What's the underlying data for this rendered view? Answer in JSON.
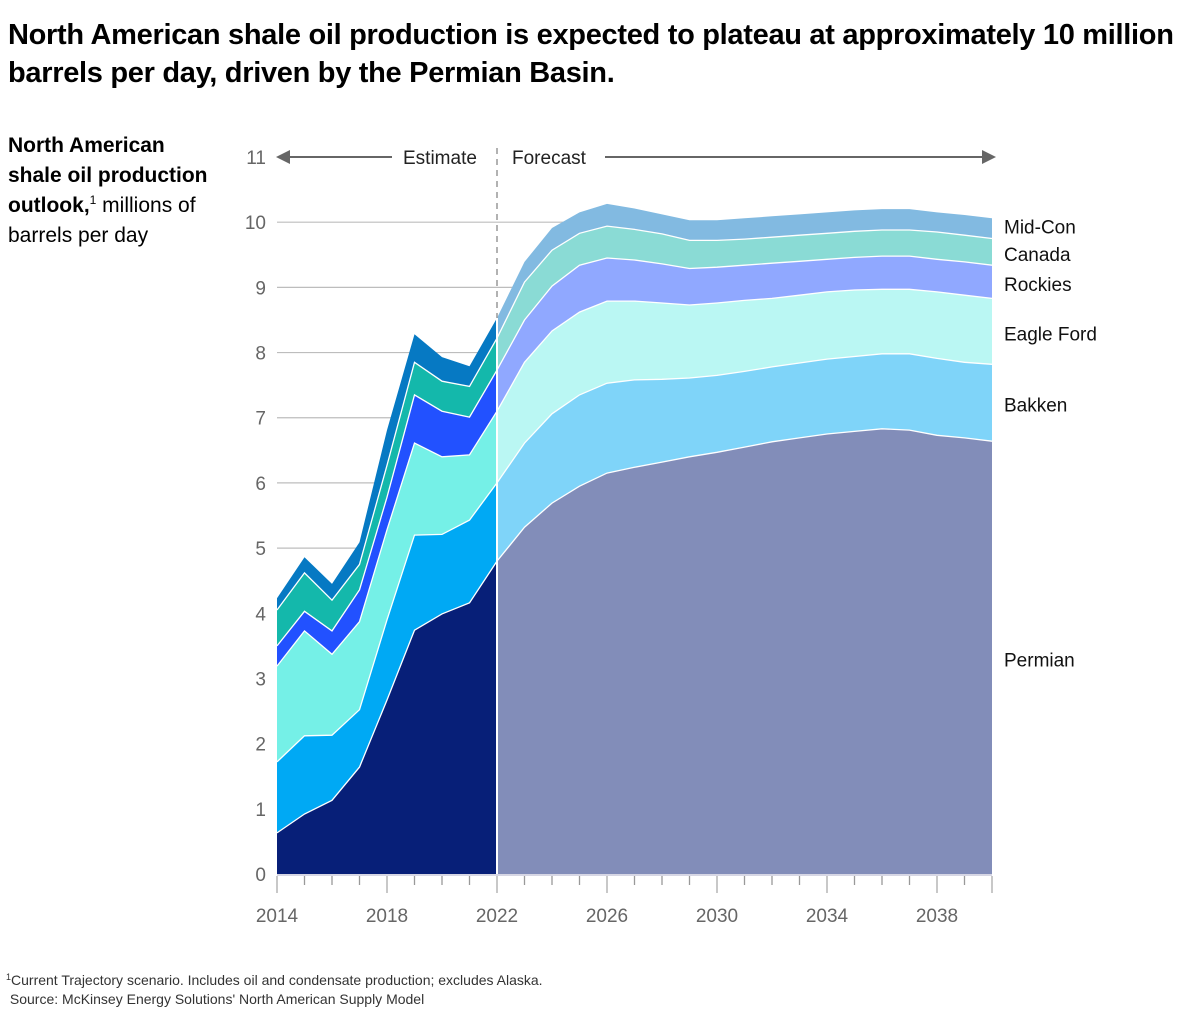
{
  "headline": "North American shale oil production is expected to plateau at approximately 10 million barrels per day, driven by the Permian Basin.",
  "ylabel": {
    "bold": "North American shale oil production outlook,",
    "footnote_marker": "1",
    "rest": " millions of barrels per day"
  },
  "footnote": {
    "marker": "1",
    "text": "Current Trajectory scenario. Includes oil and condensate production; excludes Alaska.",
    "source": "Source: McKinsey Energy Solutions' North American Supply Model"
  },
  "periods": {
    "estimate_label": "Estimate",
    "forecast_label": "Forecast",
    "split_year": 2022
  },
  "chart_data": {
    "type": "area",
    "stacked": true,
    "title": "North American shale oil production outlook",
    "xlabel": "",
    "ylabel": "millions of barrels per day",
    "xlim": [
      2014,
      2040
    ],
    "ylim": [
      0,
      11
    ],
    "yticks": [
      0,
      1,
      2,
      3,
      4,
      5,
      6,
      7,
      8,
      9,
      10,
      11
    ],
    "xtick_labels": [
      2014,
      2018,
      2022,
      2026,
      2030,
      2034,
      2038
    ],
    "grid": "horizontal",
    "legend": "right (inline labels)",
    "x": [
      2014,
      2015,
      2016,
      2017,
      2018,
      2019,
      2020,
      2021,
      2022,
      2023,
      2024,
      2025,
      2026,
      2027,
      2028,
      2029,
      2030,
      2031,
      2032,
      2033,
      2034,
      2035,
      2036,
      2037,
      2038,
      2039,
      2040
    ],
    "series": [
      {
        "name": "Permian",
        "estimate_color": "#071F78",
        "forecast_color": "#828DB9",
        "values": [
          0.63,
          0.92,
          1.13,
          1.64,
          2.67,
          3.74,
          3.99,
          4.16,
          4.8,
          5.32,
          5.69,
          5.95,
          6.15,
          6.24,
          6.32,
          6.4,
          6.47,
          6.55,
          6.63,
          6.69,
          6.75,
          6.79,
          6.83,
          6.81,
          6.73,
          6.69,
          6.64
        ]
      },
      {
        "name": "Bakken",
        "estimate_color": "#00A9F4",
        "forecast_color": "#7FD4F9",
        "values": [
          1.09,
          1.2,
          1.0,
          0.88,
          1.23,
          1.46,
          1.22,
          1.27,
          1.2,
          1.29,
          1.37,
          1.4,
          1.38,
          1.34,
          1.27,
          1.21,
          1.18,
          1.16,
          1.15,
          1.15,
          1.15,
          1.15,
          1.15,
          1.17,
          1.18,
          1.16,
          1.18
        ]
      },
      {
        "name": "Eagle Ford",
        "estimate_color": "#75F0E7",
        "forecast_color": "#BAF7F3",
        "values": [
          1.47,
          1.61,
          1.24,
          1.35,
          1.38,
          1.41,
          1.19,
          1.0,
          1.1,
          1.24,
          1.27,
          1.27,
          1.26,
          1.21,
          1.17,
          1.12,
          1.11,
          1.09,
          1.05,
          1.04,
          1.03,
          1.02,
          0.99,
          0.99,
          1.02,
          1.03,
          1.01
        ]
      },
      {
        "name": "Rockies",
        "estimate_color": "#2251FF",
        "forecast_color": "#90A8FF",
        "values": [
          0.31,
          0.3,
          0.36,
          0.49,
          0.5,
          0.74,
          0.7,
          0.58,
          0.63,
          0.65,
          0.69,
          0.72,
          0.66,
          0.63,
          0.6,
          0.56,
          0.55,
          0.54,
          0.54,
          0.52,
          0.5,
          0.5,
          0.51,
          0.51,
          0.5,
          0.51,
          0.51
        ]
      },
      {
        "name": "Canada",
        "estimate_color": "#14B8AB",
        "forecast_color": "#8ADBD5",
        "values": [
          0.55,
          0.59,
          0.47,
          0.39,
          0.49,
          0.5,
          0.46,
          0.47,
          0.49,
          0.58,
          0.55,
          0.49,
          0.49,
          0.47,
          0.46,
          0.43,
          0.41,
          0.4,
          0.4,
          0.4,
          0.4,
          0.4,
          0.4,
          0.4,
          0.42,
          0.41,
          0.41
        ]
      },
      {
        "name": "Mid-Con",
        "estimate_color": "#0679C3",
        "forecast_color": "#82BAE1",
        "values": [
          0.18,
          0.24,
          0.25,
          0.34,
          0.54,
          0.43,
          0.37,
          0.31,
          0.31,
          0.31,
          0.34,
          0.32,
          0.34,
          0.32,
          0.3,
          0.31,
          0.31,
          0.32,
          0.32,
          0.32,
          0.32,
          0.32,
          0.32,
          0.32,
          0.3,
          0.31,
          0.31
        ]
      }
    ]
  }
}
